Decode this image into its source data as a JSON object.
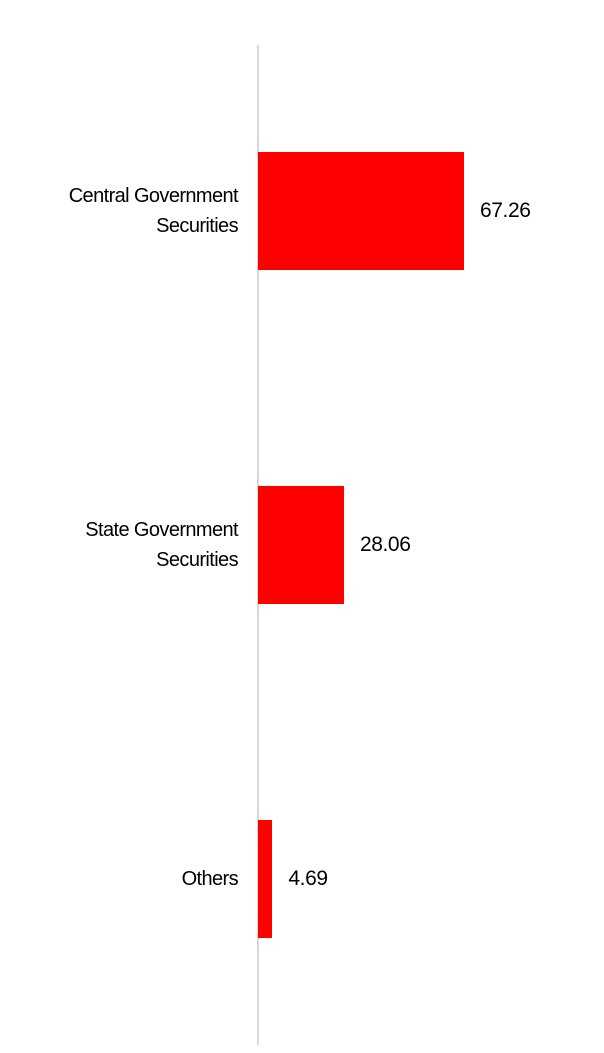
{
  "chart_data": {
    "type": "bar",
    "orientation": "horizontal",
    "categories": [
      "Central Government Securities",
      "State Government Securities",
      "Others"
    ],
    "values": [
      67.26,
      28.06,
      4.69
    ],
    "color": "#ff0000"
  }
}
